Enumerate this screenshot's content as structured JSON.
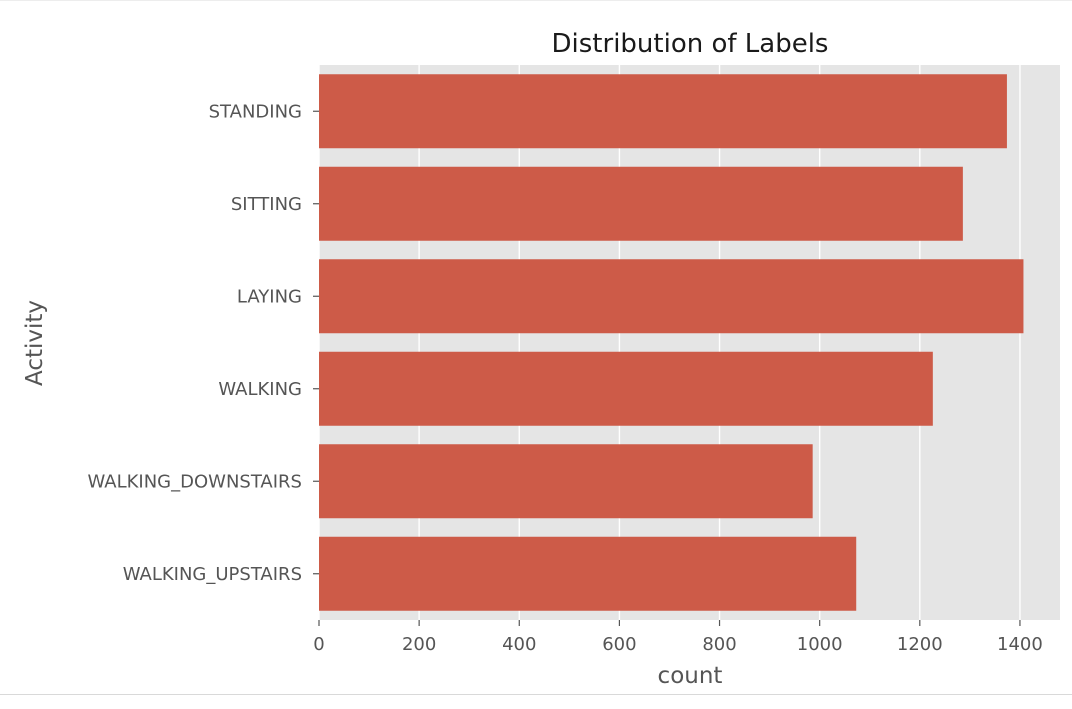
{
  "chart_data": {
    "type": "bar",
    "orientation": "horizontal",
    "title": "Distribution of Labels",
    "xlabel": "count",
    "ylabel": "Activity",
    "categories": [
      "STANDING",
      "SITTING",
      "LAYING",
      "WALKING",
      "WALKING_DOWNSTAIRS",
      "WALKING_UPSTAIRS"
    ],
    "values": [
      1374,
      1286,
      1407,
      1226,
      986,
      1073
    ],
    "xlim": [
      0,
      1480
    ],
    "xticks": [
      0,
      200,
      400,
      600,
      800,
      1000,
      1200,
      1400
    ],
    "grid": true,
    "colors": {
      "bar": "#CD5B48",
      "plot_background": "#E5E5E5",
      "grid": "#FFFFFF",
      "text": "#555555"
    }
  }
}
